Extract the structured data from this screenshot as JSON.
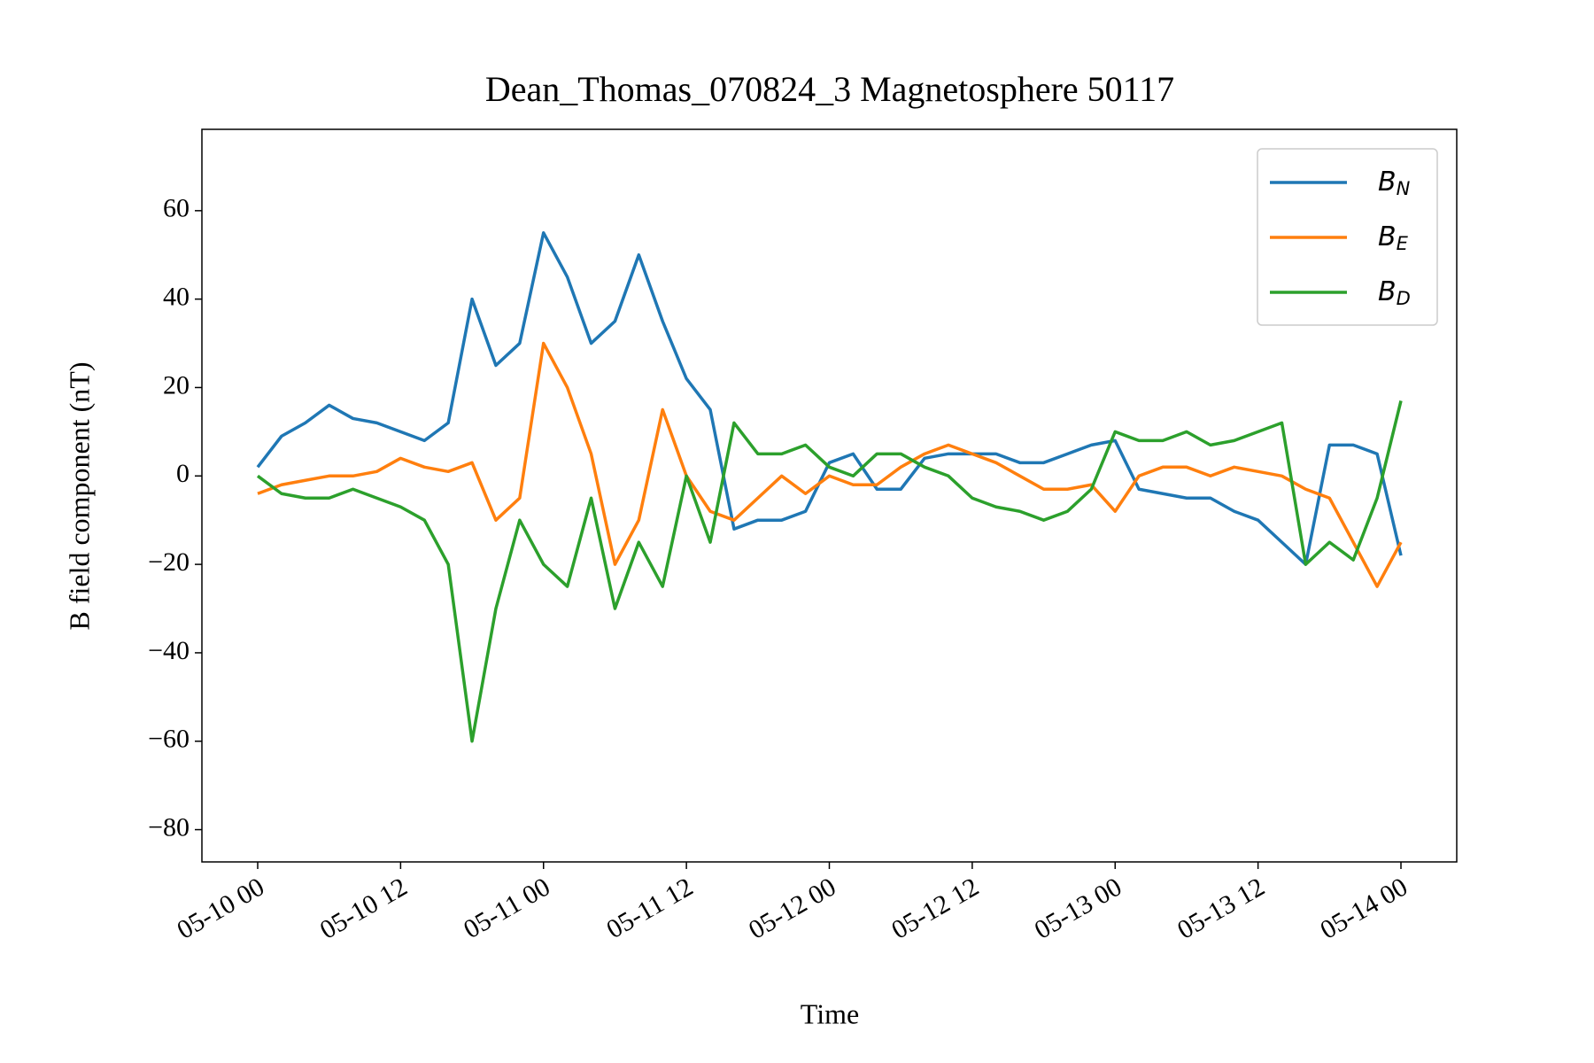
{
  "chart_data": {
    "type": "line",
    "title": "Dean_Thomas_070824_3 Magnetosphere 50117",
    "xlabel": "Time",
    "ylabel": "B field component (nT)",
    "x": [
      "05-10 00",
      "05-10 02",
      "05-10 04",
      "05-10 06",
      "05-10 08",
      "05-10 10",
      "05-10 12",
      "05-10 14",
      "05-10 16",
      "05-10 18",
      "05-10 20",
      "05-10 22",
      "05-11 00",
      "05-11 02",
      "05-11 04",
      "05-11 06",
      "05-11 08",
      "05-11 10",
      "05-11 12",
      "05-11 14",
      "05-11 16",
      "05-11 18",
      "05-11 20",
      "05-11 22",
      "05-12 00",
      "05-12 02",
      "05-12 04",
      "05-12 06",
      "05-12 08",
      "05-12 10",
      "05-12 12",
      "05-12 14",
      "05-12 16",
      "05-12 18",
      "05-12 20",
      "05-12 22",
      "05-13 00",
      "05-13 02",
      "05-13 04",
      "05-13 06",
      "05-13 08",
      "05-13 10",
      "05-13 12",
      "05-13 14",
      "05-13 16",
      "05-13 18",
      "05-13 20",
      "05-13 22",
      "05-14 00"
    ],
    "xticks": [
      "05-10 00",
      "05-10 12",
      "05-11 00",
      "05-11 12",
      "05-12 00",
      "05-12 12",
      "05-13 00",
      "05-13 12",
      "05-14 00"
    ],
    "ylim": [
      -87.3,
      78.4
    ],
    "yticks": [
      {
        "value": -80,
        "label": "−80"
      },
      {
        "value": -60,
        "label": "−60"
      },
      {
        "value": -40,
        "label": "−40"
      },
      {
        "value": -20,
        "label": "−20"
      },
      0,
      20,
      40,
      60
    ],
    "legend": "upper right",
    "series": [
      {
        "name": "BN",
        "color": "#1f77b4",
        "values": [
          2,
          9,
          12,
          16,
          13,
          12,
          10,
          8,
          12,
          40,
          25,
          30,
          55,
          45,
          30,
          35,
          50,
          35,
          22,
          15,
          -12,
          -10,
          -10,
          -8,
          3,
          5,
          -3,
          -3,
          4,
          5,
          5,
          5,
          3,
          3,
          5,
          7,
          8,
          -3,
          -4,
          -5,
          -5,
          -8,
          -10,
          -15,
          -20,
          7,
          7,
          5,
          -18
        ]
      },
      {
        "name": "BE",
        "color": "#ff7f0e",
        "values": [
          -4,
          -2,
          -1,
          0,
          0,
          1,
          4,
          2,
          1,
          3,
          -10,
          -5,
          30,
          20,
          5,
          -20,
          -10,
          15,
          0,
          -8,
          -10,
          -5,
          0,
          -4,
          0,
          -2,
          -2,
          2,
          5,
          7,
          5,
          3,
          0,
          -3,
          -3,
          -2,
          -8,
          0,
          2,
          2,
          0,
          2,
          1,
          0,
          -3,
          -5,
          -15,
          -25,
          -15
        ]
      },
      {
        "name": "BD",
        "color": "#2ca02c",
        "values": [
          0,
          -4,
          -5,
          -5,
          -3,
          -5,
          -7,
          -10,
          -20,
          -60,
          -30,
          -10,
          -20,
          -25,
          -5,
          -30,
          -15,
          -25,
          0,
          -15,
          12,
          5,
          5,
          7,
          2,
          0,
          5,
          5,
          2,
          0,
          -5,
          -7,
          -8,
          -10,
          -8,
          -3,
          10,
          8,
          8,
          10,
          7,
          8,
          10,
          12,
          -20,
          -15,
          -19,
          -5,
          17
        ]
      }
    ]
  }
}
